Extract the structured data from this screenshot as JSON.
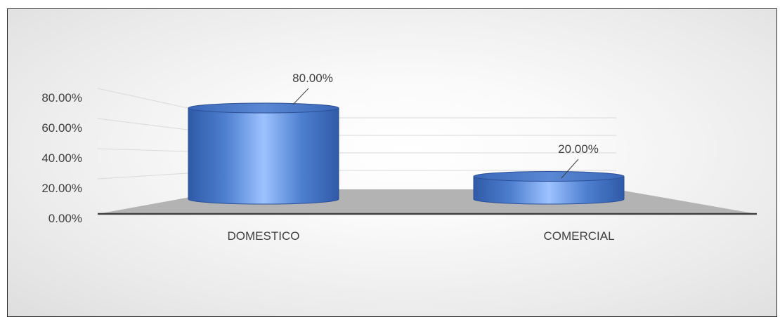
{
  "chart_data": {
    "type": "bar",
    "style": "3d-cylinder",
    "categories": [
      "DOMESTICO",
      "COMERCIAL"
    ],
    "values": [
      80.0,
      20.0
    ],
    "data_labels": [
      "80.00%",
      "20.00%"
    ],
    "y_ticks": [
      "0.00%",
      "20.00%",
      "40.00%",
      "60.00%",
      "80.00%"
    ],
    "ylim": [
      0,
      80
    ],
    "grid": true,
    "legend": "none",
    "title": "",
    "xlabel": "",
    "ylabel": "",
    "colors": {
      "bar": "#4f7fd0",
      "bar_dark": "#2f5aa8",
      "bar_light": "#9cc3ff",
      "floor": "#b3b3b3",
      "axis": "#404040",
      "grid": "#d9d9d9",
      "label": "#404040"
    }
  }
}
